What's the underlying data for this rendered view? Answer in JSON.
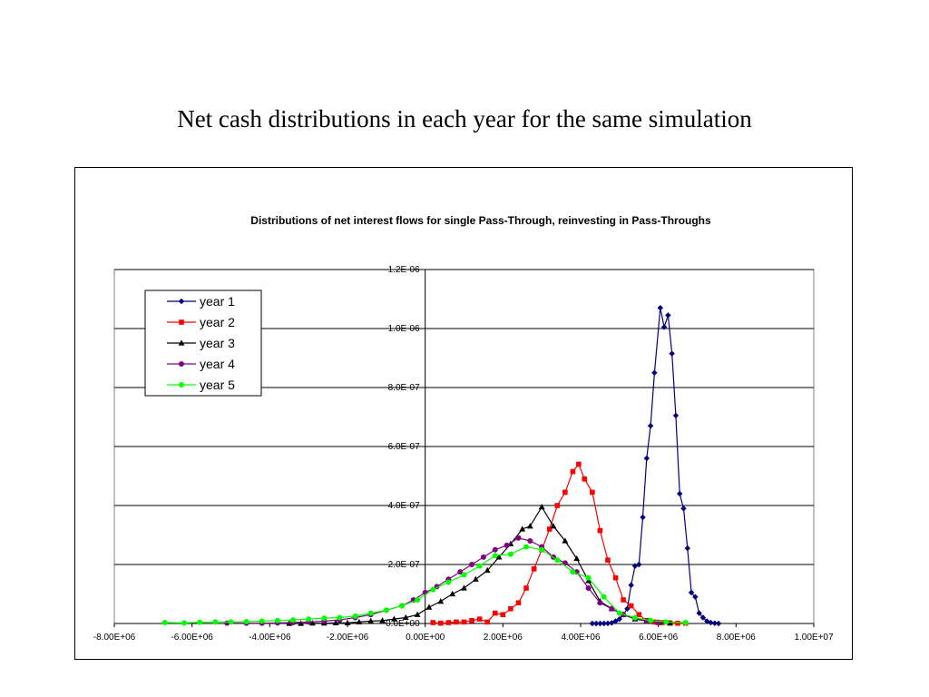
{
  "slide": {
    "title": "Net cash distributions in each year for the same simulation"
  },
  "chart_data": {
    "type": "line",
    "title": "Distributions of net interest flows for single Pass-Through, reinvesting in Pass-Throughs",
    "xlim": [
      -8000000,
      10000000
    ],
    "ylim": [
      0,
      1.2e-06
    ],
    "x_ticks": [
      -8000000,
      -6000000,
      -4000000,
      -2000000,
      0,
      2000000,
      4000000,
      6000000,
      8000000,
      10000000
    ],
    "x_tick_labels": [
      "-8.00E+06",
      "-6.00E+06",
      "-4.00E+06",
      "-2.00E+06",
      "0.00E+00",
      "2.00E+06",
      "4.00E+06",
      "6.00E+06",
      "8.00E+06",
      "1.00E+07"
    ],
    "y_ticks": [
      0,
      2e-07,
      4e-07,
      6e-07,
      8e-07,
      1e-06,
      1.2e-06
    ],
    "y_tick_labels": [
      "0.0E+00",
      "2.0E-07",
      "4.0E-07",
      "6.0E-07",
      "8.0E-07",
      "1.0E-06",
      "1.2E-06"
    ],
    "grid": "horizontal",
    "legend_position": "top-left",
    "series": [
      {
        "name": "year 1",
        "color": "#000080",
        "marker": "diamond",
        "points": [
          [
            4300000,
            0
          ],
          [
            4400000,
            0
          ],
          [
            4500000,
            0
          ],
          [
            4600000,
            0
          ],
          [
            4700000,
            5e-10
          ],
          [
            4800000,
            2e-09
          ],
          [
            4900000,
            8e-09
          ],
          [
            5000000,
            1.5e-08
          ],
          [
            5100000,
            3e-08
          ],
          [
            5200000,
            5e-08
          ],
          [
            5300000,
            1.3e-07
          ],
          [
            5400000,
            1.95e-07
          ],
          [
            5500000,
            2e-07
          ],
          [
            5600000,
            3.6e-07
          ],
          [
            5700000,
            5.6e-07
          ],
          [
            5800000,
            6.7e-07
          ],
          [
            5900000,
            8.5e-07
          ],
          [
            6050000,
            1.07e-06
          ],
          [
            6150000,
            1.005e-06
          ],
          [
            6250000,
            1.045e-06
          ],
          [
            6350000,
            9.15e-07
          ],
          [
            6450000,
            7.05e-07
          ],
          [
            6550000,
            4.4e-07
          ],
          [
            6650000,
            3.9e-07
          ],
          [
            6750000,
            2.55e-07
          ],
          [
            6850000,
            1.05e-07
          ],
          [
            6950000,
            9e-08
          ],
          [
            7050000,
            3.5e-08
          ],
          [
            7150000,
            2e-08
          ],
          [
            7250000,
            8e-09
          ],
          [
            7350000,
            3e-09
          ],
          [
            7450000,
            1e-09
          ],
          [
            7550000,
            0
          ]
        ]
      },
      {
        "name": "year 2",
        "color": "#ff0000",
        "marker": "square",
        "points": [
          [
            200000,
            3e-09
          ],
          [
            400000,
            1e-09
          ],
          [
            600000,
            3e-09
          ],
          [
            800000,
            5e-09
          ],
          [
            1000000,
            5e-09
          ],
          [
            1200000,
            1e-08
          ],
          [
            1400000,
            1.5e-08
          ],
          [
            1600000,
            5e-09
          ],
          [
            1800000,
            3.5e-08
          ],
          [
            2000000,
            3e-08
          ],
          [
            2200000,
            5e-08
          ],
          [
            2400000,
            7e-08
          ],
          [
            2600000,
            1.2e-07
          ],
          [
            2800000,
            1.85e-07
          ],
          [
            3000000,
            2.5e-07
          ],
          [
            3200000,
            3.2e-07
          ],
          [
            3400000,
            4e-07
          ],
          [
            3600000,
            4.45e-07
          ],
          [
            3800000,
            5.15e-07
          ],
          [
            3950000,
            5.4e-07
          ],
          [
            4100000,
            4.9e-07
          ],
          [
            4300000,
            4.45e-07
          ],
          [
            4500000,
            3.15e-07
          ],
          [
            4700000,
            2.15e-07
          ],
          [
            4900000,
            1.55e-07
          ],
          [
            5100000,
            8e-08
          ],
          [
            5300000,
            6e-08
          ],
          [
            5500000,
            3e-08
          ],
          [
            5700000,
            1e-08
          ],
          [
            5900000,
            5e-09
          ],
          [
            6100000,
            3e-09
          ],
          [
            6300000,
            2e-09
          ],
          [
            6500000,
            1e-09
          ],
          [
            6700000,
            1e-09
          ]
        ]
      },
      {
        "name": "year 3",
        "color": "#000000",
        "marker": "triangle",
        "points": [
          [
            -3500000,
            0
          ],
          [
            -3200000,
            0
          ],
          [
            -2900000,
            1e-09
          ],
          [
            -2600000,
            1e-09
          ],
          [
            -2300000,
            2e-09
          ],
          [
            -2000000,
            2e-09
          ],
          [
            -1700000,
            5e-09
          ],
          [
            -1400000,
            8e-09
          ],
          [
            -1100000,
            1e-08
          ],
          [
            -800000,
            1.5e-08
          ],
          [
            -500000,
            2e-08
          ],
          [
            -200000,
            3e-08
          ],
          [
            100000,
            5.5e-08
          ],
          [
            400000,
            7.5e-08
          ],
          [
            700000,
            1e-07
          ],
          [
            1000000,
            1.2e-07
          ],
          [
            1300000,
            1.5e-07
          ],
          [
            1600000,
            1.8e-07
          ],
          [
            1900000,
            2.25e-07
          ],
          [
            2200000,
            2.7e-07
          ],
          [
            2500000,
            3.2e-07
          ],
          [
            2700000,
            3.3e-07
          ],
          [
            3000000,
            3.95e-07
          ],
          [
            3300000,
            3.3e-07
          ],
          [
            3600000,
            2.8e-07
          ],
          [
            3900000,
            2.2e-07
          ],
          [
            4200000,
            1.45e-07
          ],
          [
            4500000,
            7.5e-08
          ],
          [
            4800000,
            5e-08
          ],
          [
            5100000,
            3e-08
          ],
          [
            5400000,
            1.5e-08
          ],
          [
            5700000,
            8e-09
          ],
          [
            6000000,
            3e-09
          ],
          [
            6300000,
            1e-09
          ]
        ]
      },
      {
        "name": "year 4",
        "color": "#800080",
        "marker": "circle",
        "points": [
          [
            -5100000,
            1e-09
          ],
          [
            -4600000,
            1e-09
          ],
          [
            -4200000,
            1e-09
          ],
          [
            -3800000,
            2e-09
          ],
          [
            -3400000,
            3e-09
          ],
          [
            -3000000,
            5e-09
          ],
          [
            -2600000,
            8e-09
          ],
          [
            -2200000,
            1.2e-08
          ],
          [
            -1800000,
            2e-08
          ],
          [
            -1400000,
            3e-08
          ],
          [
            -1000000,
            4.5e-08
          ],
          [
            -600000,
            6e-08
          ],
          [
            -300000,
            8e-08
          ],
          [
            0,
            1.05e-07
          ],
          [
            300000,
            1.25e-07
          ],
          [
            600000,
            1.5e-07
          ],
          [
            900000,
            1.75e-07
          ],
          [
            1200000,
            2e-07
          ],
          [
            1500000,
            2.25e-07
          ],
          [
            1800000,
            2.5e-07
          ],
          [
            2100000,
            2.65e-07
          ],
          [
            2400000,
            2.9e-07
          ],
          [
            2700000,
            2.8e-07
          ],
          [
            3000000,
            2.6e-07
          ],
          [
            3300000,
            2.25e-07
          ],
          [
            3600000,
            2.05e-07
          ],
          [
            3900000,
            1.75e-07
          ],
          [
            4200000,
            1.2e-07
          ],
          [
            4500000,
            7e-08
          ],
          [
            4800000,
            5e-08
          ],
          [
            5100000,
            3e-08
          ],
          [
            5400000,
            1.8e-08
          ],
          [
            5700000,
            8e-09
          ],
          [
            6000000,
            3e-09
          ]
        ]
      },
      {
        "name": "year 5",
        "color": "#00ff00",
        "marker": "circle",
        "points": [
          [
            -6700000,
            3e-09
          ],
          [
            -6200000,
            2e-09
          ],
          [
            -5800000,
            4e-09
          ],
          [
            -5400000,
            5e-09
          ],
          [
            -5000000,
            5e-09
          ],
          [
            -4600000,
            6e-09
          ],
          [
            -4200000,
            8e-09
          ],
          [
            -3800000,
            1e-08
          ],
          [
            -3400000,
            1.2e-08
          ],
          [
            -3000000,
            1.5e-08
          ],
          [
            -2600000,
            1.8e-08
          ],
          [
            -2200000,
            2e-08
          ],
          [
            -1800000,
            2.5e-08
          ],
          [
            -1400000,
            3.5e-08
          ],
          [
            -1000000,
            4.5e-08
          ],
          [
            -600000,
            6e-08
          ],
          [
            -200000,
            8e-08
          ],
          [
            200000,
            1.15e-07
          ],
          [
            600000,
            1.4e-07
          ],
          [
            1000000,
            1.65e-07
          ],
          [
            1400000,
            1.95e-07
          ],
          [
            1800000,
            2.3e-07
          ],
          [
            2200000,
            2.35e-07
          ],
          [
            2600000,
            2.6e-07
          ],
          [
            3000000,
            2.5e-07
          ],
          [
            3400000,
            2.15e-07
          ],
          [
            3800000,
            1.75e-07
          ],
          [
            4200000,
            1.55e-07
          ],
          [
            4600000,
            9e-08
          ],
          [
            5000000,
            3.5e-08
          ],
          [
            5400000,
            2e-08
          ],
          [
            5800000,
            1e-08
          ],
          [
            6200000,
            5e-09
          ],
          [
            6700000,
            3e-09
          ]
        ]
      }
    ]
  }
}
